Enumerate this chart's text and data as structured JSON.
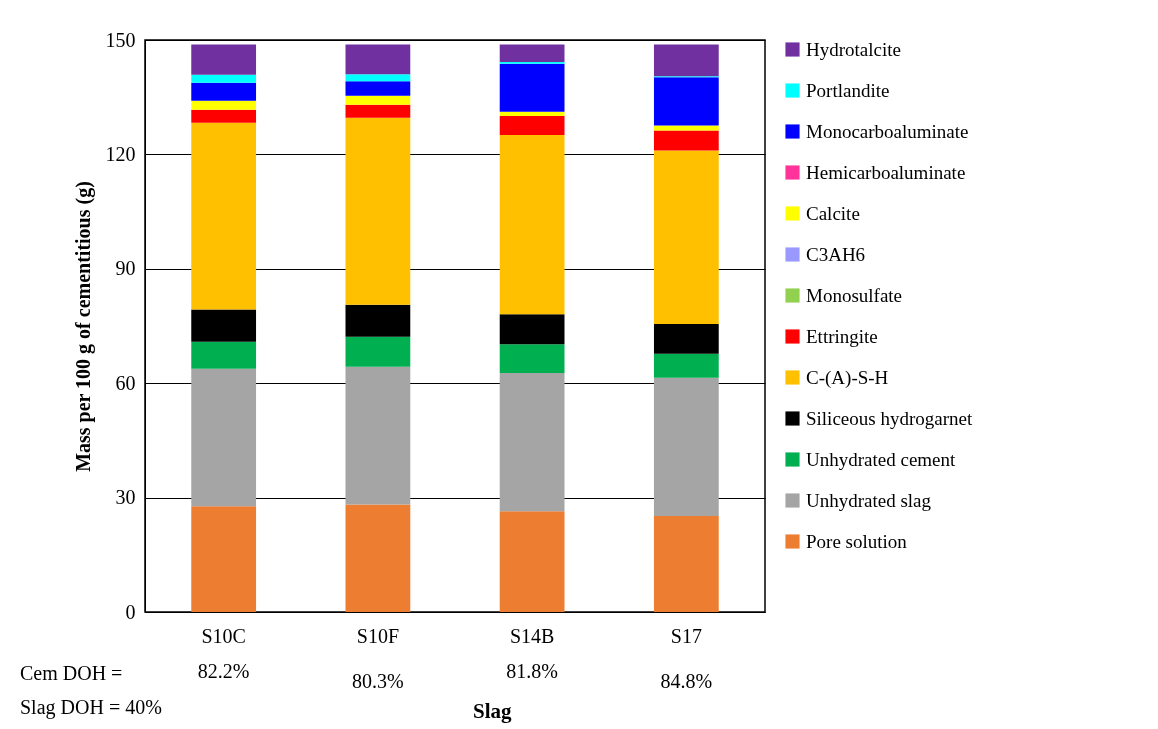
{
  "chart_data": {
    "type": "bar",
    "stacked": true,
    "xlabel": "Slag",
    "ylabel": "Mass per 100 g of cementitious (g)",
    "categories": [
      "S10C",
      "S10F",
      "S14B",
      "S17"
    ],
    "ylim": [
      0,
      150
    ],
    "yticks": [
      0,
      30,
      60,
      90,
      120,
      150
    ],
    "grid": "y",
    "legend": "right",
    "series": [
      {
        "name": "Pore solution",
        "color": "#ed7d31",
        "values": [
          27.7,
          28.2,
          26.4,
          25.2
        ]
      },
      {
        "name": "Unhydrated slag",
        "color": "#a5a5a5",
        "values": [
          36.1,
          36.1,
          36.3,
          36.2
        ]
      },
      {
        "name": "Unhydrated cement",
        "color": "#00b050",
        "values": [
          7.1,
          7.9,
          7.5,
          6.3
        ]
      },
      {
        "name": "Siliceous hydrogarnet",
        "color": "#000000",
        "values": [
          8.4,
          8.4,
          7.9,
          7.8
        ]
      },
      {
        "name": "C-(A)-S-H",
        "color": "#ffc000",
        "values": [
          49.0,
          49.0,
          47.0,
          45.5
        ]
      },
      {
        "name": "Ettringite",
        "color": "#ff0000",
        "values": [
          3.4,
          3.4,
          5.0,
          5.3
        ]
      },
      {
        "name": "Monosulfate",
        "color": "#92d050",
        "values": [
          0,
          0,
          0,
          0
        ]
      },
      {
        "name": "C3AH6",
        "color": "#9999ff",
        "values": [
          0,
          0,
          0,
          0
        ]
      },
      {
        "name": "Calcite",
        "color": "#ffff00",
        "values": [
          2.4,
          2.4,
          1.1,
          1.3
        ]
      },
      {
        "name": "Hemicarboaluminate",
        "color": "#ff3399",
        "values": [
          0,
          0,
          0,
          0
        ]
      },
      {
        "name": "Monocarboaluminate",
        "color": "#0000ff",
        "values": [
          4.7,
          3.8,
          12.6,
          12.6
        ]
      },
      {
        "name": "Portlandite",
        "color": "#00ffff",
        "values": [
          2.1,
          1.8,
          0.4,
          0.3
        ]
      },
      {
        "name": "Hydrotalcite",
        "color": "#7030a0",
        "values": [
          7.9,
          7.8,
          4.6,
          8.3
        ]
      }
    ],
    "annotations": [
      "Cem DOH =",
      "82.2%",
      "80.3%",
      "81.8%",
      "84.8%",
      "Slag DOH = 40%"
    ]
  }
}
